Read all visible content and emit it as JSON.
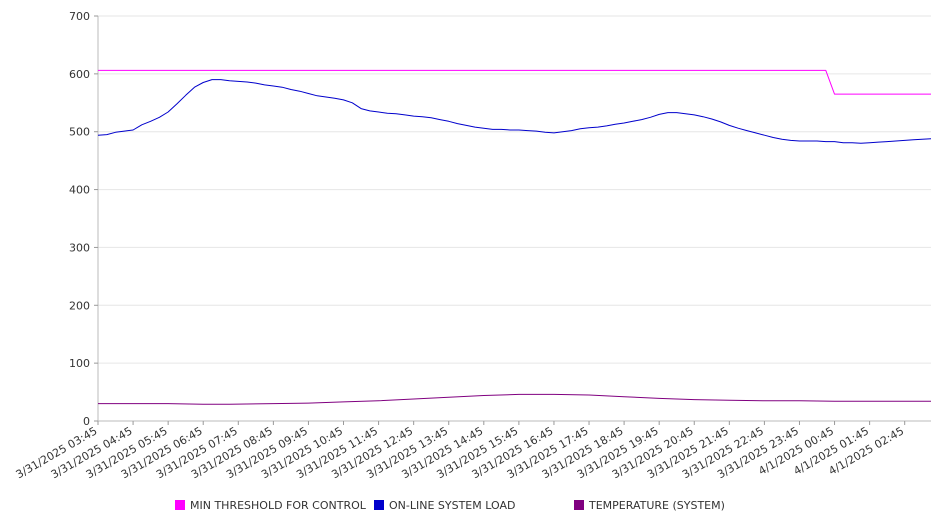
{
  "chart_data": {
    "type": "line",
    "title": "",
    "xlabel": "",
    "ylabel": "",
    "ylim": [
      0,
      700
    ],
    "y_ticks": [
      0,
      100,
      200,
      300,
      400,
      500,
      600,
      700
    ],
    "grid": "horizontal",
    "legend_position": "bottom",
    "x_start": "3/31/2025 03:45",
    "x_end": "4/1/2025 03:30",
    "x_tick_labels": [
      "3/31/2025 03:45",
      "3/31/2025 04:45",
      "3/31/2025 05:45",
      "3/31/2025 06:45",
      "3/31/2025 07:45",
      "3/31/2025 08:45",
      "3/31/2025 09:45",
      "3/31/2025 10:45",
      "3/31/2025 11:45",
      "3/31/2025 12:45",
      "3/31/2025 13:45",
      "3/31/2025 14:45",
      "3/31/2025 15:45",
      "3/31/2025 16:45",
      "3/31/2025 17:45",
      "3/31/2025 18:45",
      "3/31/2025 19:45",
      "3/31/2025 20:45",
      "3/31/2025 21:45",
      "3/31/2025 22:45",
      "3/31/2025 23:45",
      "4/1/2025 00:45",
      "4/1/2025 01:45",
      "4/1/2025 02:45"
    ],
    "series": [
      {
        "name": "MIN THRESHOLD FOR CONTROL",
        "color": "#ff00ff",
        "step": true,
        "points": [
          [
            "3/31/2025 03:45",
            606
          ],
          [
            "4/1/2025 00:30",
            606
          ],
          [
            "4/1/2025 00:45",
            565
          ],
          [
            "4/1/2025 03:30",
            565
          ]
        ]
      },
      {
        "name": "ON-LINE SYSTEM LOAD",
        "color": "#0000cc",
        "points": [
          [
            "3/31/2025 03:45",
            494
          ],
          [
            "3/31/2025 04:00",
            495
          ],
          [
            "3/31/2025 04:15",
            499
          ],
          [
            "3/31/2025 04:30",
            501
          ],
          [
            "3/31/2025 04:45",
            503
          ],
          [
            "3/31/2025 05:00",
            512
          ],
          [
            "3/31/2025 05:15",
            518
          ],
          [
            "3/31/2025 05:30",
            525
          ],
          [
            "3/31/2025 05:45",
            534
          ],
          [
            "3/31/2025 06:00",
            548
          ],
          [
            "3/31/2025 06:15",
            563
          ],
          [
            "3/31/2025 06:30",
            577
          ],
          [
            "3/31/2025 06:45",
            585
          ],
          [
            "3/31/2025 07:00",
            590
          ],
          [
            "3/31/2025 07:15",
            590
          ],
          [
            "3/31/2025 07:30",
            588
          ],
          [
            "3/31/2025 07:45",
            587
          ],
          [
            "3/31/2025 08:00",
            586
          ],
          [
            "3/31/2025 08:15",
            584
          ],
          [
            "3/31/2025 08:30",
            581
          ],
          [
            "3/31/2025 08:45",
            579
          ],
          [
            "3/31/2025 09:00",
            577
          ],
          [
            "3/31/2025 09:15",
            573
          ],
          [
            "3/31/2025 09:30",
            570
          ],
          [
            "3/31/2025 09:45",
            566
          ],
          [
            "3/31/2025 10:00",
            562
          ],
          [
            "3/31/2025 10:15",
            560
          ],
          [
            "3/31/2025 10:30",
            558
          ],
          [
            "3/31/2025 10:45",
            555
          ],
          [
            "3/31/2025 11:00",
            550
          ],
          [
            "3/31/2025 11:15",
            540
          ],
          [
            "3/31/2025 11:30",
            536
          ],
          [
            "3/31/2025 11:45",
            534
          ],
          [
            "3/31/2025 12:00",
            532
          ],
          [
            "3/31/2025 12:15",
            531
          ],
          [
            "3/31/2025 12:30",
            529
          ],
          [
            "3/31/2025 12:45",
            527
          ],
          [
            "3/31/2025 13:00",
            526
          ],
          [
            "3/31/2025 13:15",
            524
          ],
          [
            "3/31/2025 13:30",
            521
          ],
          [
            "3/31/2025 13:45",
            518
          ],
          [
            "3/31/2025 14:00",
            514
          ],
          [
            "3/31/2025 14:15",
            511
          ],
          [
            "3/31/2025 14:30",
            508
          ],
          [
            "3/31/2025 14:45",
            506
          ],
          [
            "3/31/2025 15:00",
            504
          ],
          [
            "3/31/2025 15:15",
            504
          ],
          [
            "3/31/2025 15:30",
            503
          ],
          [
            "3/31/2025 15:45",
            503
          ],
          [
            "3/31/2025 16:00",
            502
          ],
          [
            "3/31/2025 16:15",
            501
          ],
          [
            "3/31/2025 16:30",
            499
          ],
          [
            "3/31/2025 16:45",
            498
          ],
          [
            "3/31/2025 17:00",
            500
          ],
          [
            "3/31/2025 17:15",
            502
          ],
          [
            "3/31/2025 17:30",
            505
          ],
          [
            "3/31/2025 17:45",
            507
          ],
          [
            "3/31/2025 18:00",
            508
          ],
          [
            "3/31/2025 18:15",
            510
          ],
          [
            "3/31/2025 18:30",
            513
          ],
          [
            "3/31/2025 18:45",
            515
          ],
          [
            "3/31/2025 19:00",
            518
          ],
          [
            "3/31/2025 19:15",
            521
          ],
          [
            "3/31/2025 19:30",
            525
          ],
          [
            "3/31/2025 19:45",
            530
          ],
          [
            "3/31/2025 20:00",
            533
          ],
          [
            "3/31/2025 20:15",
            533
          ],
          [
            "3/31/2025 20:30",
            531
          ],
          [
            "3/31/2025 20:45",
            529
          ],
          [
            "3/31/2025 21:00",
            526
          ],
          [
            "3/31/2025 21:15",
            522
          ],
          [
            "3/31/2025 21:30",
            517
          ],
          [
            "3/31/2025 21:45",
            511
          ],
          [
            "3/31/2025 22:00",
            506
          ],
          [
            "3/31/2025 22:15",
            502
          ],
          [
            "3/31/2025 22:30",
            498
          ],
          [
            "3/31/2025 22:45",
            494
          ],
          [
            "3/31/2025 23:00",
            490
          ],
          [
            "3/31/2025 23:15",
            487
          ],
          [
            "3/31/2025 23:30",
            485
          ],
          [
            "3/31/2025 23:45",
            484
          ],
          [
            "4/1/2025 00:00",
            484
          ],
          [
            "4/1/2025 00:15",
            484
          ],
          [
            "4/1/2025 00:30",
            483
          ],
          [
            "4/1/2025 00:45",
            483
          ],
          [
            "4/1/2025 01:00",
            481
          ],
          [
            "4/1/2025 01:15",
            481
          ],
          [
            "4/1/2025 01:30",
            480
          ],
          [
            "4/1/2025 01:45",
            481
          ],
          [
            "4/1/2025 02:00",
            482
          ],
          [
            "4/1/2025 02:15",
            483
          ],
          [
            "4/1/2025 02:30",
            484
          ],
          [
            "4/1/2025 02:45",
            485
          ],
          [
            "4/1/2025 03:00",
            486
          ],
          [
            "4/1/2025 03:15",
            487
          ],
          [
            "4/1/2025 03:30",
            488
          ]
        ]
      },
      {
        "name": "TEMPERATURE (SYSTEM)",
        "color": "#800080",
        "points": [
          [
            "3/31/2025 03:45",
            30
          ],
          [
            "3/31/2025 05:45",
            30
          ],
          [
            "3/31/2025 06:45",
            29
          ],
          [
            "3/31/2025 07:30",
            29
          ],
          [
            "3/31/2025 08:45",
            30
          ],
          [
            "3/31/2025 09:45",
            31
          ],
          [
            "3/31/2025 10:45",
            33
          ],
          [
            "3/31/2025 11:45",
            35
          ],
          [
            "3/31/2025 12:45",
            38
          ],
          [
            "3/31/2025 13:45",
            41
          ],
          [
            "3/31/2025 14:45",
            44
          ],
          [
            "3/31/2025 15:45",
            46
          ],
          [
            "3/31/2025 16:45",
            46
          ],
          [
            "3/31/2025 17:45",
            45
          ],
          [
            "3/31/2025 18:45",
            42
          ],
          [
            "3/31/2025 19:45",
            39
          ],
          [
            "3/31/2025 20:45",
            37
          ],
          [
            "3/31/2025 21:45",
            36
          ],
          [
            "3/31/2025 22:45",
            35
          ],
          [
            "3/31/2025 23:45",
            35
          ],
          [
            "4/1/2025 00:45",
            34
          ],
          [
            "4/1/2025 01:45",
            34
          ],
          [
            "4/1/2025 02:45",
            34
          ],
          [
            "4/1/2025 03:30",
            34
          ]
        ]
      }
    ]
  },
  "legend": {
    "items": [
      {
        "label": "MIN THRESHOLD FOR CONTROL",
        "color": "#ff00ff"
      },
      {
        "label": "ON-LINE SYSTEM LOAD",
        "color": "#0000cc"
      },
      {
        "label": "TEMPERATURE (SYSTEM)",
        "color": "#800080"
      }
    ]
  }
}
